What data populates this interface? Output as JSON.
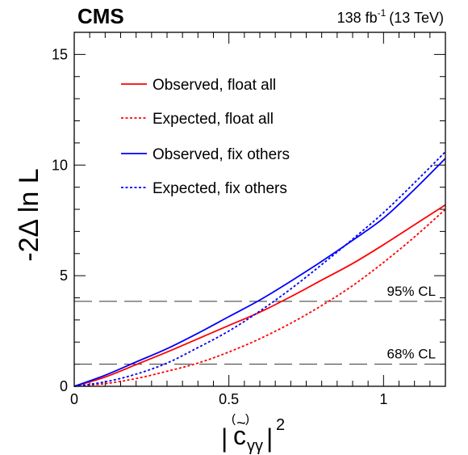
{
  "header": {
    "experiment": "CMS",
    "lumi_value": "138 fb",
    "lumi_exponent": "-1",
    "energy": "(13 TeV)"
  },
  "chart_data": {
    "type": "line",
    "xlabel_main": "c",
    "xlabel_tilde": "~",
    "xlabel_paren_open": "(",
    "xlabel_paren_close": ")",
    "xlabel_subscript": "γγ",
    "xlabel_power": "2",
    "ylabel": "-2Δ ln L",
    "xlim": [
      0,
      1.2
    ],
    "ylim": [
      0,
      16
    ],
    "x_ticks": [
      0,
      0.5,
      1
    ],
    "x_tick_labels": [
      "0",
      "0.5",
      "1"
    ],
    "y_ticks": [
      0,
      5,
      10,
      15
    ],
    "y_tick_labels": [
      "0",
      "5",
      "10",
      "15"
    ],
    "grid": false,
    "legend_position": "top-left",
    "series": [
      {
        "name": "Observed, float all",
        "color": "#ff0000",
        "style": "solid",
        "x": [
          0,
          0.1,
          0.2,
          0.3,
          0.4,
          0.5,
          0.6,
          0.7,
          0.8,
          0.9,
          1.0,
          1.1,
          1.2
        ],
        "y": [
          0,
          0.42,
          0.98,
          1.55,
          2.15,
          2.75,
          3.35,
          4.05,
          4.8,
          5.55,
          6.4,
          7.3,
          8.2
        ]
      },
      {
        "name": "Expected, float all",
        "color": "#ff0000",
        "style": "dotted",
        "x": [
          0,
          0.1,
          0.2,
          0.3,
          0.4,
          0.5,
          0.6,
          0.7,
          0.8,
          0.9,
          1.0,
          1.1,
          1.2
        ],
        "y": [
          0,
          0.12,
          0.35,
          0.68,
          1.05,
          1.55,
          2.15,
          2.85,
          3.65,
          4.55,
          5.6,
          6.75,
          8.0
        ]
      },
      {
        "name": "Observed, fix others",
        "color": "#0000ff",
        "style": "solid",
        "x": [
          0,
          0.1,
          0.2,
          0.3,
          0.4,
          0.5,
          0.6,
          0.7,
          0.8,
          0.9,
          1.0,
          1.1,
          1.2
        ],
        "y": [
          0,
          0.5,
          1.1,
          1.7,
          2.4,
          3.15,
          3.9,
          4.75,
          5.65,
          6.6,
          7.6,
          8.9,
          10.3
        ]
      },
      {
        "name": "Expected, fix others",
        "color": "#0000ff",
        "style": "dotted",
        "x": [
          0,
          0.1,
          0.2,
          0.3,
          0.4,
          0.5,
          0.6,
          0.7,
          0.8,
          0.9,
          1.0,
          1.1,
          1.2
        ],
        "y": [
          0,
          0.2,
          0.55,
          1.05,
          1.75,
          2.5,
          3.4,
          4.4,
          5.5,
          6.65,
          7.85,
          9.2,
          10.6
        ]
      }
    ],
    "reference_lines": [
      {
        "label": "95% CL",
        "y": 3.84
      },
      {
        "label": "68% CL",
        "y": 1.0
      }
    ]
  }
}
